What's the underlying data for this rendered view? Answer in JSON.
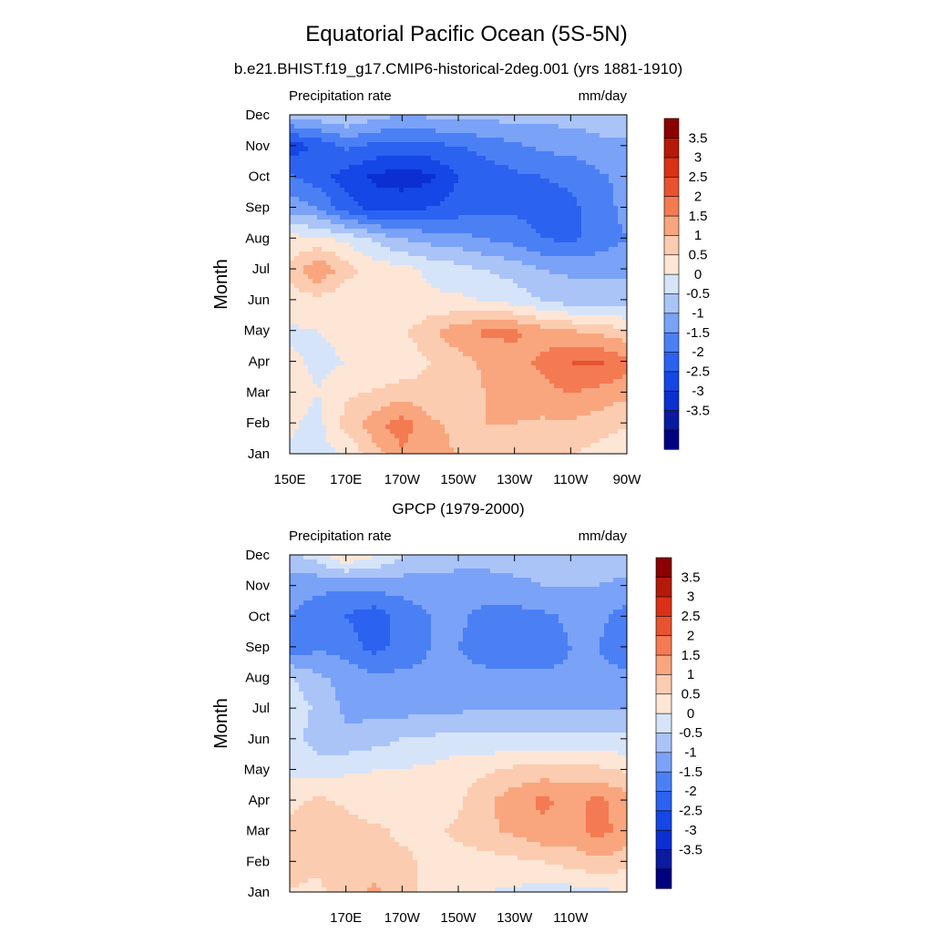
{
  "figure": {
    "title": "Equatorial Pacific Ocean (5S-5N)"
  },
  "colorbar": {
    "levels": [
      -3.5,
      -3,
      -2.5,
      -2,
      -1.5,
      -1,
      -0.5,
      0,
      0.5,
      1,
      1.5,
      2,
      2.5,
      3,
      3.5
    ],
    "labels": [
      "3.5",
      "3",
      "2.5",
      "2",
      "1.5",
      "1",
      "0.5",
      "0",
      "-0.5",
      "-1",
      "-1.5",
      "-2",
      "-2.5",
      "-3",
      "-3.5"
    ],
    "colors": [
      "#000080",
      "#0a1ba0",
      "#0b2fd0",
      "#1546e6",
      "#2c62f0",
      "#4b80f5",
      "#7aa2f7",
      "#aac4f8",
      "#d6e4fa",
      "#fde6d6",
      "#fcccb0",
      "#f9a67e",
      "#f47a52",
      "#e8532f",
      "#d93116",
      "#b51a08",
      "#8b0000"
    ]
  },
  "chart_data": [
    {
      "type": "heatmap",
      "title": "b.e21.BHIST.f19_g17.CMIP6-historical-2deg.001 (yrs 1881-1910)",
      "left_label": "Precipitation rate",
      "right_label": "mm/day",
      "ylabel": "Month",
      "xlabel": "",
      "x_ticks": [
        "150E",
        "170E",
        "170W",
        "150W",
        "130W",
        "110W",
        "90W"
      ],
      "y_ticks": [
        "Jan",
        "Feb",
        "Mar",
        "Apr",
        "May",
        "Jun",
        "Jul",
        "Aug",
        "Sep",
        "Oct",
        "Nov",
        "Dec"
      ],
      "xlim": [
        150,
        270
      ],
      "x": [
        150,
        160,
        170,
        180,
        190,
        200,
        210,
        220,
        230,
        240,
        250,
        260,
        270
      ],
      "grid": false,
      "values": [
        [
          0.4,
          0.3,
          0.5,
          1.2,
          1.9,
          1.6,
          1.5,
          1.4,
          1.3,
          1.2,
          1.0,
          0.8,
          0.7
        ],
        [
          0.6,
          0.3,
          1.2,
          1.8,
          2.3,
          1.6,
          1.4,
          1.5,
          1.5,
          1.4,
          1.4,
          1.2,
          1.0
        ],
        [
          0.8,
          0.5,
          0.9,
          1.1,
          1.3,
          1.2,
          1.3,
          1.5,
          1.6,
          1.8,
          2.0,
          1.8,
          1.6
        ],
        [
          0.6,
          0.4,
          0.5,
          0.5,
          0.6,
          1.0,
          1.3,
          1.6,
          1.8,
          2.1,
          2.5,
          2.6,
          2.2
        ],
        [
          0.4,
          0.5,
          0.6,
          0.8,
          0.9,
          1.4,
          1.8,
          2.1,
          2.1,
          1.8,
          1.6,
          1.4,
          1.2
        ],
        [
          0.8,
          0.8,
          0.6,
          0.5,
          0.5,
          0.6,
          0.6,
          0.5,
          0.3,
          0.0,
          -0.2,
          -0.3,
          -0.3
        ],
        [
          1.1,
          2.0,
          1.2,
          0.8,
          0.7,
          0.4,
          0.2,
          0.0,
          -0.2,
          -0.5,
          -0.6,
          -0.6,
          -0.6
        ],
        [
          0.7,
          0.6,
          0.4,
          -0.1,
          -0.5,
          -0.7,
          -0.8,
          -1.0,
          -1.2,
          -1.5,
          -1.6,
          -1.3,
          -1.0
        ],
        [
          -0.7,
          -1.0,
          -1.8,
          -2.2,
          -2.1,
          -2.0,
          -1.8,
          -1.7,
          -1.6,
          -1.7,
          -1.6,
          -1.3,
          -0.8
        ],
        [
          -1.4,
          -1.8,
          -2.2,
          -2.6,
          -2.8,
          -2.6,
          -2.0,
          -1.8,
          -1.6,
          -1.5,
          -1.4,
          -1.1,
          -0.8
        ],
        [
          -2.3,
          -1.9,
          -1.4,
          -1.6,
          -1.7,
          -1.6,
          -1.5,
          -1.3,
          -1.1,
          -0.9,
          -0.8,
          -0.6,
          -0.6
        ],
        [
          -0.3,
          -0.2,
          0.1,
          -0.3,
          -0.5,
          -0.4,
          -0.3,
          -0.3,
          -0.3,
          -0.3,
          -0.3,
          -0.3,
          -0.3
        ]
      ]
    },
    {
      "type": "heatmap",
      "title": "GPCP (1979-2000)",
      "left_label": "Precipitation rate",
      "right_label": "mm/day",
      "ylabel": "Month",
      "xlabel": "",
      "x_ticks": [
        "170E",
        "170W",
        "150W",
        "130W",
        "110W"
      ],
      "y_ticks": [
        "Jan",
        "Feb",
        "Mar",
        "Apr",
        "May",
        "Jun",
        "Jul",
        "Aug",
        "Sep",
        "Oct",
        "Nov",
        "Dec"
      ],
      "xlim": [
        150,
        270
      ],
      "x": [
        150,
        160,
        170,
        180,
        190,
        200,
        210,
        220,
        230,
        240,
        250,
        260,
        270
      ],
      "grid": false,
      "values": [
        [
          1.0,
          0.9,
          1.3,
          1.6,
          1.2,
          0.8,
          0.6,
          0.5,
          0.4,
          0.3,
          0.3,
          0.4,
          0.5
        ],
        [
          1.1,
          1.1,
          1.3,
          1.3,
          1.1,
          0.9,
          0.8,
          0.8,
          0.9,
          1.0,
          1.2,
          1.4,
          1.2
        ],
        [
          1.2,
          1.4,
          1.2,
          1.1,
          0.9,
          0.9,
          1.1,
          1.4,
          1.6,
          1.9,
          1.8,
          2.2,
          1.8
        ],
        [
          0.8,
          1.1,
          0.9,
          0.7,
          0.6,
          0.6,
          0.9,
          1.4,
          1.8,
          2.1,
          1.9,
          2.1,
          1.7
        ],
        [
          0.4,
          0.3,
          0.4,
          0.5,
          0.5,
          0.6,
          0.8,
          0.9,
          1.1,
          1.2,
          1.2,
          1.1,
          0.9
        ],
        [
          0.3,
          -0.3,
          -0.4,
          -0.2,
          0.0,
          0.1,
          0.1,
          0.1,
          0.1,
          0.1,
          0.1,
          0.1,
          0.1
        ],
        [
          0.3,
          -0.1,
          -0.6,
          -0.7,
          -0.7,
          -0.7,
          -0.6,
          -0.5,
          -0.5,
          -0.5,
          -0.5,
          -0.5,
          -0.5
        ],
        [
          0.1,
          -0.4,
          -0.7,
          -0.9,
          -0.9,
          -0.9,
          -0.9,
          -0.9,
          -0.9,
          -0.9,
          -0.9,
          -0.9,
          -0.9
        ],
        [
          -1.5,
          -1.1,
          -1.2,
          -1.7,
          -1.3,
          -1.0,
          -1.0,
          -1.2,
          -1.3,
          -1.3,
          -1.0,
          -1.0,
          -1.3
        ],
        [
          -1.0,
          -1.2,
          -1.5,
          -1.8,
          -1.3,
          -1.0,
          -0.9,
          -1.2,
          -1.2,
          -1.1,
          -0.9,
          -0.9,
          -1.2
        ],
        [
          -0.8,
          -0.9,
          -0.9,
          -0.8,
          -0.8,
          -0.7,
          -0.7,
          -0.7,
          -0.6,
          -0.5,
          -0.5,
          -0.5,
          -0.6
        ],
        [
          -0.2,
          0.3,
          1.0,
          0.6,
          0.1,
          -0.2,
          -0.3,
          -0.3,
          -0.3,
          -0.3,
          -0.3,
          -0.3,
          -0.3
        ]
      ]
    }
  ]
}
